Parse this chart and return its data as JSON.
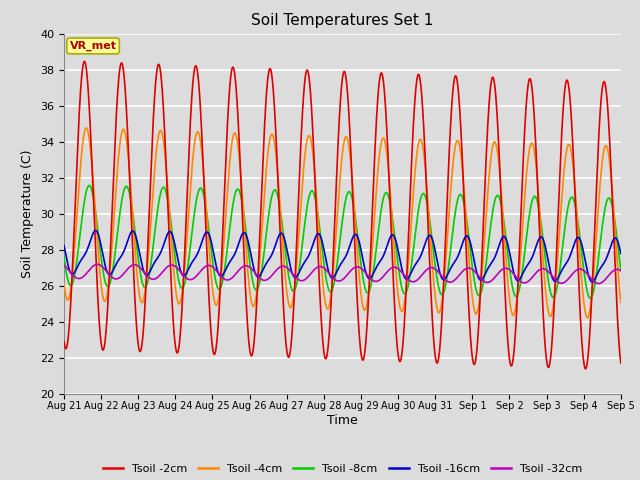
{
  "title": "Soil Temperatures Set 1",
  "xlabel": "Time",
  "ylabel": "Soil Temperature (C)",
  "ylim": [
    20,
    40
  ],
  "background_color": "#dcdcdc",
  "plot_bg_color": "#dcdcdc",
  "grid_color": "#ffffff",
  "annotation_text": "VR_met",
  "annotation_bg": "#ffff99",
  "annotation_border": "#aaaa00",
  "annotation_text_color": "#aa0000",
  "series_colors": {
    "Tsoil -2cm": "#dd0000",
    "Tsoil -4cm": "#ff8800",
    "Tsoil -8cm": "#00cc00",
    "Tsoil -16cm": "#0000cc",
    "Tsoil -32cm": "#bb00bb"
  },
  "x_tick_labels": [
    "Aug 21",
    "Aug 22",
    "Aug 23",
    "Aug 24",
    "Aug 25",
    "Aug 26",
    "Aug 27",
    "Aug 28",
    "Aug 29",
    "Aug 30",
    "Aug 31",
    "Sep 1",
    "Sep 2",
    "Sep 3",
    "Sep 4",
    "Sep 5"
  ],
  "num_days": 15,
  "points_per_day": 144,
  "lw": 1.2
}
